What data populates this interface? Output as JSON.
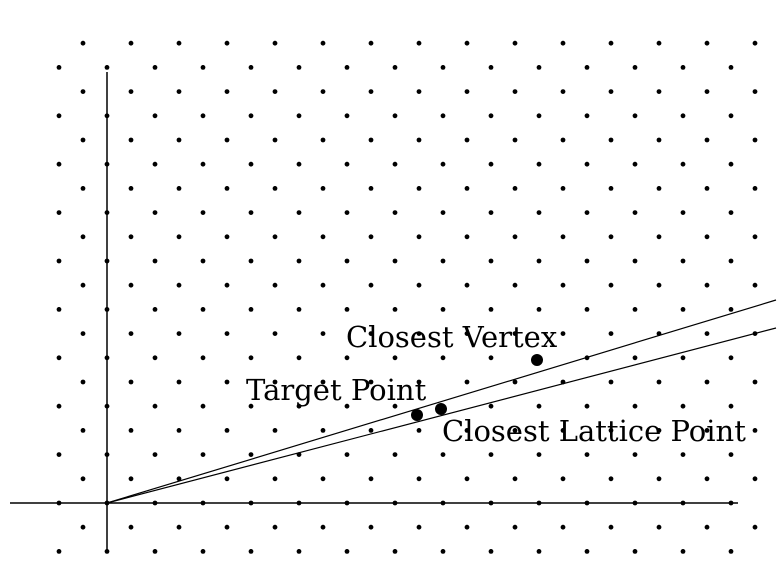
{
  "diagram": {
    "labels": {
      "closest_vertex": "Closest Vertex",
      "target_point": "Target Point",
      "closest_lattice_point": "Closest Lattice Point"
    },
    "colors": {
      "ink": "#000000",
      "background": "#ffffff"
    },
    "lattice": {
      "type": "hexagonal",
      "dot_fill": "#000000"
    }
  }
}
